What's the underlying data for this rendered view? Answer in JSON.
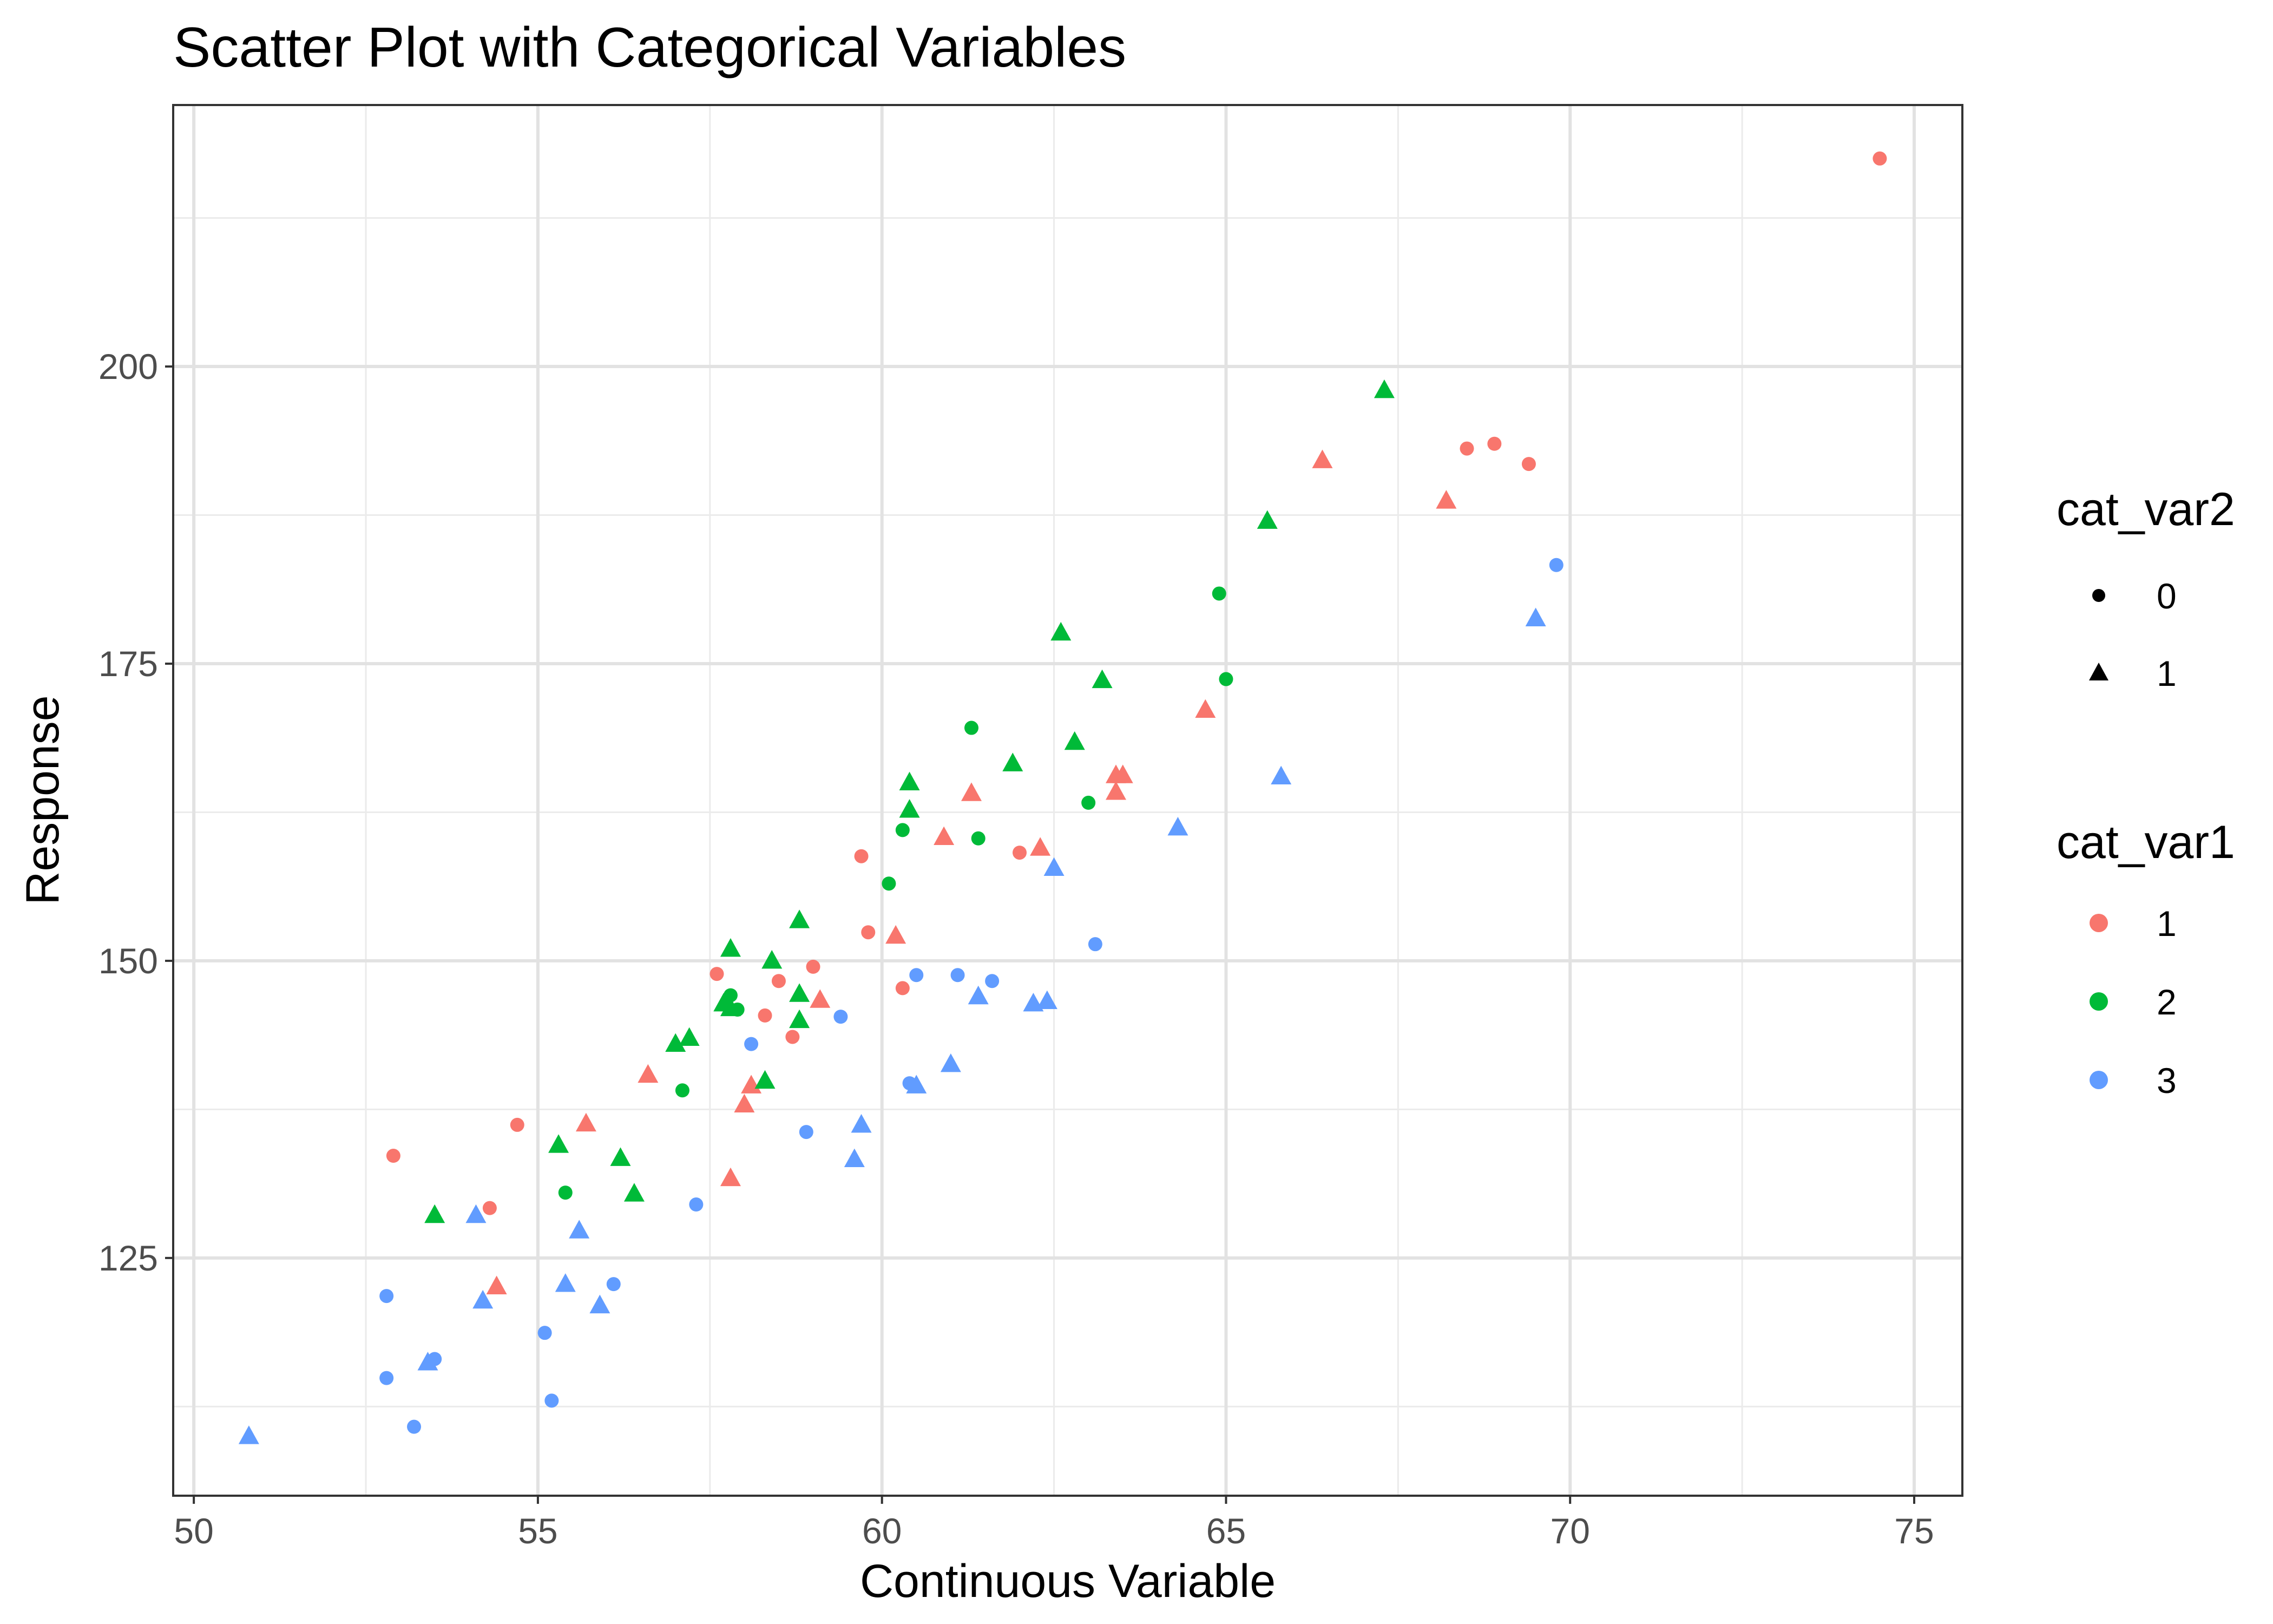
{
  "chart_data": {
    "type": "scatter",
    "title": "Scatter Plot with Categorical Variables",
    "xlabel": "Continuous Variable",
    "ylabel": "Response",
    "xlim": [
      49.7,
      75.7
    ],
    "ylim": [
      105,
      222
    ],
    "x_ticks": [
      50,
      55,
      60,
      65,
      70,
      75
    ],
    "x_tick_labels": [
      "50",
      "55",
      "60",
      "65",
      "70",
      "75"
    ],
    "y_ticks": [
      125,
      150,
      175,
      200
    ],
    "y_tick_labels": [
      "125",
      "150",
      "175",
      "200"
    ],
    "grid": true,
    "legend_position": "right",
    "legends": [
      {
        "title": "cat_var2",
        "entries": [
          {
            "label": "0",
            "shape": "circle"
          },
          {
            "label": "1",
            "shape": "triangle"
          }
        ]
      },
      {
        "title": "cat_var1",
        "entries": [
          {
            "label": "1",
            "color": "#F8766D"
          },
          {
            "label": "2",
            "color": "#00BA38"
          },
          {
            "label": "3",
            "color": "#619CFF"
          }
        ]
      }
    ],
    "colors": {
      "1": "#F8766D",
      "2": "#00BA38",
      "3": "#619CFF"
    },
    "series": [
      {
        "cat_var1": "1",
        "cat_var2": "0",
        "points": [
          [
            74.5,
            217.5
          ],
          [
            68.9,
            193.5
          ],
          [
            68.5,
            193.1
          ],
          [
            69.4,
            191.8
          ],
          [
            59.7,
            158.8
          ],
          [
            62.0,
            159.1
          ],
          [
            59.8,
            152.4
          ],
          [
            57.6,
            148.9
          ],
          [
            58.5,
            148.3
          ],
          [
            59.0,
            149.5
          ],
          [
            60.3,
            147.7
          ],
          [
            58.3,
            145.4
          ],
          [
            58.7,
            143.6
          ],
          [
            52.9,
            133.6
          ],
          [
            54.7,
            136.2
          ],
          [
            54.3,
            129.2
          ]
        ]
      },
      {
        "cat_var1": "1",
        "cat_var2": "1",
        "points": [
          [
            66.4,
            192.1
          ],
          [
            68.2,
            188.7
          ],
          [
            64.7,
            171.1
          ],
          [
            63.4,
            165.6
          ],
          [
            63.5,
            165.6
          ],
          [
            63.4,
            164.2
          ],
          [
            61.3,
            164.1
          ],
          [
            60.9,
            160.4
          ],
          [
            62.3,
            159.5
          ],
          [
            60.2,
            152.1
          ],
          [
            59.1,
            146.7
          ],
          [
            56.6,
            140.4
          ],
          [
            58.1,
            139.5
          ],
          [
            58.0,
            137.9
          ],
          [
            55.7,
            136.3
          ],
          [
            57.8,
            131.7
          ],
          [
            54.4,
            122.6
          ]
        ]
      },
      {
        "cat_var1": "2",
        "cat_var2": "0",
        "points": [
          [
            64.9,
            180.9
          ],
          [
            65.0,
            173.7
          ],
          [
            61.3,
            169.6
          ],
          [
            63.0,
            163.3
          ],
          [
            60.3,
            161.0
          ],
          [
            61.4,
            160.3
          ],
          [
            60.1,
            156.5
          ],
          [
            57.8,
            147.1
          ],
          [
            57.9,
            145.9
          ],
          [
            57.1,
            139.1
          ],
          [
            55.4,
            130.5
          ]
        ]
      },
      {
        "cat_var1": "2",
        "cat_var2": "1",
        "points": [
          [
            67.3,
            198.0
          ],
          [
            65.6,
            187.0
          ],
          [
            62.6,
            177.6
          ],
          [
            63.2,
            173.6
          ],
          [
            62.8,
            168.4
          ],
          [
            61.9,
            166.6
          ],
          [
            60.4,
            165.0
          ],
          [
            60.4,
            162.7
          ],
          [
            58.8,
            153.4
          ],
          [
            57.8,
            151.0
          ],
          [
            58.4,
            150.0
          ],
          [
            57.7,
            146.4
          ],
          [
            57.8,
            146.0
          ],
          [
            58.8,
            147.2
          ],
          [
            58.8,
            145.0
          ],
          [
            57.2,
            143.5
          ],
          [
            57.0,
            143.0
          ],
          [
            58.3,
            139.9
          ],
          [
            55.3,
            134.5
          ],
          [
            56.2,
            133.4
          ],
          [
            56.4,
            130.4
          ],
          [
            53.5,
            128.6
          ]
        ]
      },
      {
        "cat_var1": "3",
        "cat_var2": "0",
        "points": [
          [
            69.8,
            183.3
          ],
          [
            63.1,
            151.4
          ],
          [
            60.5,
            148.8
          ],
          [
            61.1,
            148.8
          ],
          [
            61.6,
            148.3
          ],
          [
            59.4,
            145.3
          ],
          [
            58.1,
            143.0
          ],
          [
            60.4,
            139.7
          ],
          [
            58.9,
            135.6
          ],
          [
            57.3,
            129.5
          ],
          [
            56.1,
            122.8
          ],
          [
            52.8,
            121.8
          ],
          [
            55.1,
            118.7
          ],
          [
            53.5,
            116.5
          ],
          [
            52.8,
            114.9
          ],
          [
            55.2,
            113.0
          ],
          [
            53.2,
            110.8
          ]
        ]
      },
      {
        "cat_var1": "3",
        "cat_var2": "1",
        "points": [
          [
            69.5,
            178.8
          ],
          [
            65.8,
            165.5
          ],
          [
            64.3,
            161.2
          ],
          [
            62.5,
            157.8
          ],
          [
            61.4,
            147.0
          ],
          [
            62.4,
            146.6
          ],
          [
            62.2,
            146.4
          ],
          [
            61.0,
            141.3
          ],
          [
            60.5,
            139.5
          ],
          [
            59.7,
            136.2
          ],
          [
            59.6,
            133.3
          ],
          [
            54.1,
            128.6
          ],
          [
            55.6,
            127.3
          ],
          [
            55.4,
            122.8
          ],
          [
            54.2,
            121.4
          ],
          [
            55.9,
            121.0
          ],
          [
            53.4,
            116.2
          ],
          [
            50.8,
            110.0
          ]
        ]
      }
    ]
  }
}
